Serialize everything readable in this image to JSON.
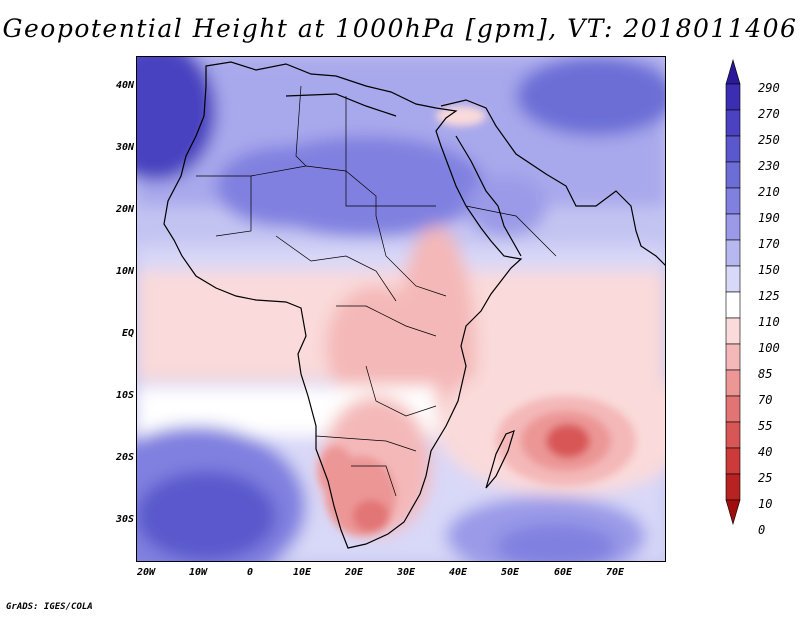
{
  "title": "Geopotential Height at 1000hPa [gpm], VT: 2018011406",
  "credit": "GrADS: IGES/COLA",
  "lat_labels": [
    "40N",
    "30N",
    "20N",
    "10N",
    "EQ",
    "10S",
    "20S",
    "30S"
  ],
  "lon_labels": [
    "20W",
    "10W",
    "0",
    "10E",
    "20E",
    "30E",
    "40E",
    "50E",
    "60E",
    "70E"
  ],
  "colorbar": {
    "levels": [
      "290",
      "270",
      "250",
      "230",
      "210",
      "190",
      "170",
      "150",
      "125",
      "110",
      "100",
      "85",
      "70",
      "55",
      "40",
      "25",
      "10",
      "0"
    ],
    "colors": [
      "#2a1a9a",
      "#3b2eb2",
      "#4a42c0",
      "#5a58cc",
      "#6c6ed6",
      "#8080e0",
      "#9a9ae8",
      "#b8b8f0",
      "#d8d8f8",
      "#ffffff",
      "#fadada",
      "#f4b8b8",
      "#ec9696",
      "#e27474",
      "#d85656",
      "#cc3a3a",
      "#b82222",
      "#a00d0d"
    ]
  },
  "map": {
    "background_color": "#b8b8f0",
    "blobs": [
      {
        "name": "sahara-high",
        "color": "#9a9ae8"
      },
      {
        "name": "atlantic-high",
        "color": "#6c6ed6"
      },
      {
        "name": "tropical-low",
        "color": "#fadada"
      },
      {
        "name": "madagascar-low",
        "color": "#d85656"
      },
      {
        "name": "southern-africa-low",
        "color": "#e27474"
      }
    ]
  }
}
